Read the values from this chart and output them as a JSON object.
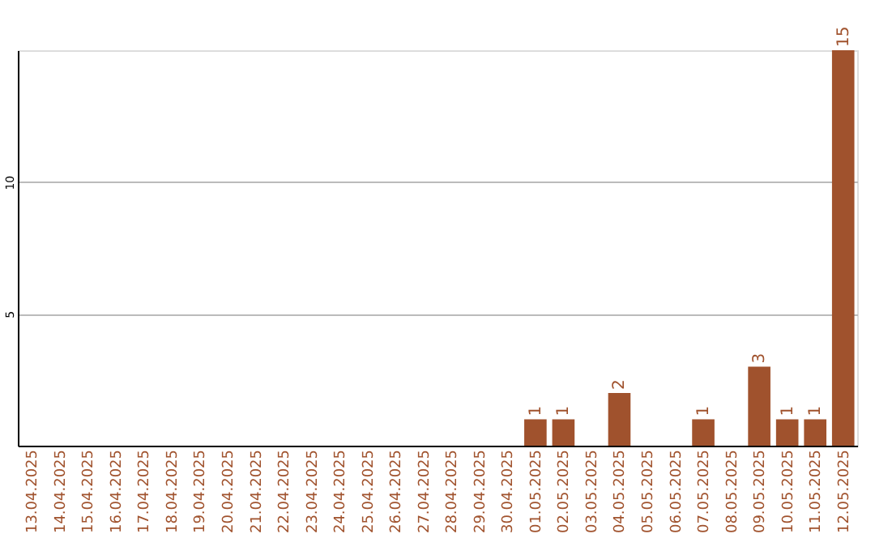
{
  "chart_data": {
    "type": "bar",
    "categories": [
      "13.04.2025",
      "14.04.2025",
      "15.04.2025",
      "16.04.2025",
      "17.04.2025",
      "18.04.2025",
      "19.04.2025",
      "20.04.2025",
      "21.04.2025",
      "22.04.2025",
      "23.04.2025",
      "24.04.2025",
      "25.04.2025",
      "26.04.2025",
      "27.04.2025",
      "28.04.2025",
      "29.04.2025",
      "30.04.2025",
      "01.05.2025",
      "02.05.2025",
      "03.05.2025",
      "04.05.2025",
      "05.05.2025",
      "06.05.2025",
      "07.05.2025",
      "08.05.2025",
      "09.05.2025",
      "10.05.2025",
      "11.05.2025",
      "12.05.2025"
    ],
    "values": [
      0,
      0,
      0,
      0,
      0,
      0,
      0,
      0,
      0,
      0,
      0,
      0,
      0,
      0,
      0,
      0,
      0,
      0,
      1,
      1,
      0,
      2,
      0,
      0,
      1,
      0,
      3,
      1,
      1,
      15
    ],
    "value_labels": [
      null,
      null,
      null,
      null,
      null,
      null,
      null,
      null,
      null,
      null,
      null,
      null,
      null,
      null,
      null,
      null,
      null,
      null,
      "1",
      "1",
      null,
      "2",
      null,
      null,
      "1",
      null,
      "3",
      "1",
      "1",
      "15"
    ],
    "color": "#a0522d",
    "ylim": [
      0,
      15
    ],
    "yticks": [
      5,
      10
    ],
    "grid": "y"
  }
}
